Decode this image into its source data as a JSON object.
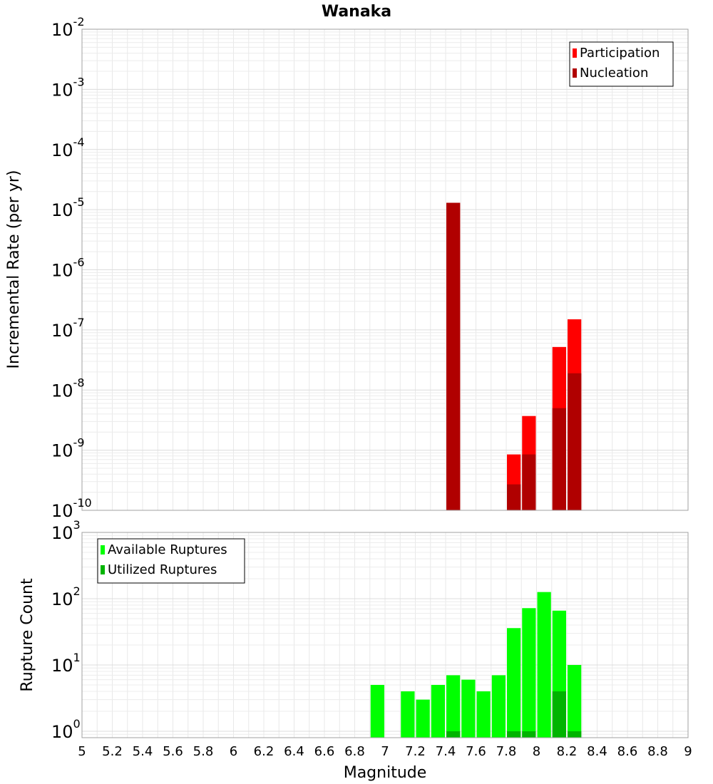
{
  "chart_data": [
    {
      "type": "bar",
      "title": "Wanaka",
      "xlabel": "",
      "ylabel": "Incremental Rate (per yr)",
      "xlim": [
        5,
        9
      ],
      "ylim": [
        1e-10,
        0.01
      ],
      "yscale": "log",
      "grid": true,
      "legend_placement": "top-right",
      "bin_width": 0.1,
      "y_ticks": [
        {
          "base": "10",
          "exp": "-2",
          "value": 0.01
        },
        {
          "base": "10",
          "exp": "-3",
          "value": 0.001
        },
        {
          "base": "10",
          "exp": "-4",
          "value": 0.0001
        },
        {
          "base": "10",
          "exp": "-5",
          "value": 1e-05
        },
        {
          "base": "10",
          "exp": "-6",
          "value": 1e-06
        },
        {
          "base": "10",
          "exp": "-7",
          "value": 1e-07
        },
        {
          "base": "10",
          "exp": "-8",
          "value": 1e-08
        },
        {
          "base": "10",
          "exp": "-9",
          "value": 1e-09
        },
        {
          "base": "10",
          "exp": "-10",
          "value": 1e-10
        }
      ],
      "series": [
        {
          "name": "Participation",
          "color": "#ff0000",
          "x": [
            7.45,
            7.85,
            7.95,
            8.15,
            8.25
          ],
          "values": [
            1.3e-05,
            8.5e-10,
            3.7e-09,
            5.2e-08,
            1.5e-07
          ]
        },
        {
          "name": "Nucleation",
          "color": "#b00000",
          "x": [
            7.45,
            7.85,
            7.95,
            8.15,
            8.25
          ],
          "values": [
            1.3e-05,
            2.7e-10,
            8.5e-10,
            5e-09,
            1.9e-08
          ]
        }
      ]
    },
    {
      "type": "bar",
      "title": "",
      "xlabel": "Magnitude",
      "ylabel": "Rupture Count",
      "xlim": [
        5,
        9
      ],
      "ylim": [
        0.8,
        1000
      ],
      "yscale": "log",
      "grid": true,
      "legend_placement": "top-left",
      "bin_width": 0.1,
      "x_ticks": [
        "5",
        "5.2",
        "5.4",
        "5.6",
        "5.8",
        "6",
        "6.2",
        "6.4",
        "6.6",
        "6.8",
        "7",
        "7.2",
        "7.4",
        "7.6",
        "7.8",
        "8",
        "8.2",
        "8.4",
        "8.6",
        "8.8",
        "9"
      ],
      "y_ticks": [
        {
          "base": "10",
          "exp": "3",
          "value": 1000
        },
        {
          "base": "10",
          "exp": "2",
          "value": 100
        },
        {
          "base": "10",
          "exp": "1",
          "value": 10
        },
        {
          "base": "10",
          "exp": "0",
          "value": 1
        }
      ],
      "series": [
        {
          "name": "Available Ruptures",
          "color": "#00ff00",
          "x": [
            6.95,
            7.15,
            7.25,
            7.35,
            7.45,
            7.55,
            7.65,
            7.75,
            7.85,
            7.95,
            8.05,
            8.15,
            8.25
          ],
          "values": [
            5,
            4,
            3,
            5,
            7,
            6,
            4,
            7,
            36,
            72,
            126,
            66,
            10
          ]
        },
        {
          "name": "Utilized Ruptures",
          "color": "#00b400",
          "x": [
            7.45,
            7.85,
            7.95,
            8.15,
            8.25
          ],
          "values": [
            1,
            1,
            1,
            4,
            1
          ]
        }
      ]
    }
  ]
}
